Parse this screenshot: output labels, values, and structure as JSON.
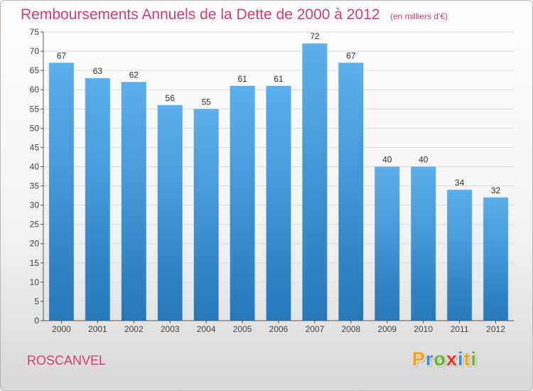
{
  "title": "Remboursements Annuels de la Dette de 2000 à 2012",
  "subtitle": "(en milliers d'€)",
  "place": "ROSCANVEL",
  "brand": {
    "letters": [
      "P",
      "r",
      "o",
      "x",
      "i",
      "t",
      "i"
    ],
    "colors": [
      "#f7a01d",
      "#3a92d4",
      "#6ab42e",
      "#e83b24",
      "#3a92d4",
      "#f7a01d",
      "#6ab42e"
    ]
  },
  "colors": {
    "accent": "#d83c6c",
    "bar_light": "#5dafec",
    "bar_dark": "#2778b8",
    "grid": "#dddddd"
  },
  "chart_data": {
    "type": "bar",
    "categories": [
      "2000",
      "2001",
      "2002",
      "2003",
      "2004",
      "2005",
      "2006",
      "2007",
      "2008",
      "2009",
      "2010",
      "2011",
      "2012"
    ],
    "values": [
      67,
      63,
      62,
      56,
      55,
      61,
      61,
      72,
      67,
      40,
      40,
      34,
      32
    ],
    "ylim": [
      0,
      75
    ],
    "yticks": [
      0,
      5,
      10,
      15,
      20,
      25,
      30,
      35,
      40,
      45,
      50,
      55,
      60,
      65,
      70,
      75
    ],
    "grid": true,
    "data_labels": true
  }
}
